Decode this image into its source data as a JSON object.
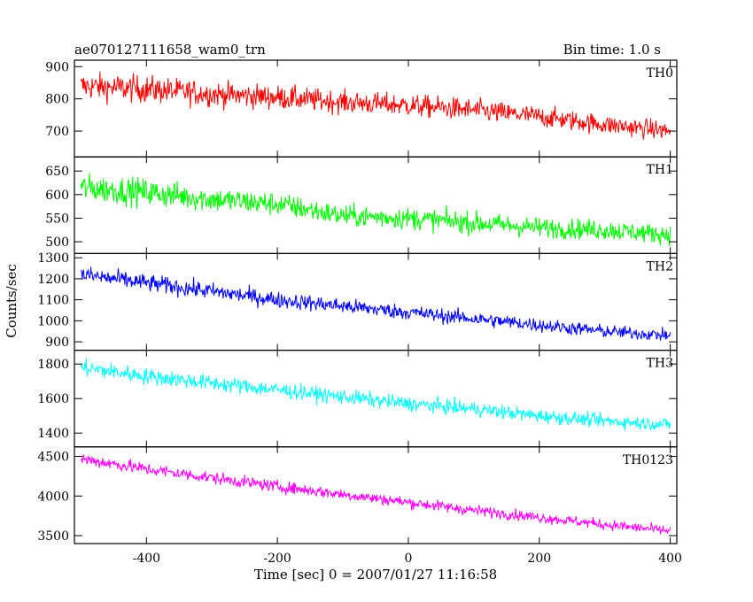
{
  "header": {
    "left_title": "ae070127111658_wam0_trn",
    "right_title": "Bin time: 1.0 s"
  },
  "chart_data": {
    "type": "line",
    "xlabel": "Time [sec] 0 = 2007/01/27 11:16:58",
    "ylabel": "Counts/sec",
    "xlim": [
      -510,
      410
    ],
    "xticks": [
      -400,
      -200,
      0,
      200,
      400
    ],
    "bin_time_s": 1.0,
    "series": [
      {
        "name": "TH0",
        "color": "#ff0000",
        "ylim": [
          620,
          920
        ],
        "yticks": [
          700,
          800,
          900
        ],
        "x": [
          -500,
          -400,
          -300,
          -200,
          -100,
          0,
          100,
          200,
          300,
          400
        ],
        "mean": [
          840,
          830,
          815,
          805,
          790,
          780,
          765,
          745,
          720,
          700
        ],
        "spread": [
          55,
          55,
          50,
          48,
          45,
          45,
          45,
          42,
          40,
          38
        ]
      },
      {
        "name": "TH1",
        "color": "#00ff00",
        "ylim": [
          475,
          680
        ],
        "yticks": [
          500,
          550,
          600,
          650
        ],
        "x": [
          -500,
          -400,
          -300,
          -200,
          -100,
          0,
          100,
          200,
          300,
          400
        ],
        "mean": [
          615,
          605,
          590,
          580,
          555,
          550,
          540,
          530,
          525,
          515
        ],
        "spread": [
          38,
          38,
          35,
          33,
          30,
          30,
          30,
          28,
          28,
          26
        ]
      },
      {
        "name": "TH2",
        "color": "#0000ff",
        "ylim": [
          860,
          1320
        ],
        "yticks": [
          900,
          1000,
          1100,
          1200,
          1300
        ],
        "x": [
          -500,
          -400,
          -300,
          -200,
          -100,
          0,
          100,
          200,
          300,
          400
        ],
        "mean": [
          1220,
          1180,
          1140,
          1100,
          1070,
          1040,
          1010,
          980,
          950,
          930
        ],
        "spread": [
          55,
          55,
          52,
          50,
          48,
          46,
          45,
          43,
          40,
          38
        ]
      },
      {
        "name": "TH3",
        "color": "#00ffff",
        "ylim": [
          1320,
          1880
        ],
        "yticks": [
          1400,
          1600,
          1800
        ],
        "x": [
          -500,
          -400,
          -300,
          -200,
          -100,
          0,
          100,
          200,
          300,
          400
        ],
        "mean": [
          1780,
          1730,
          1690,
          1650,
          1610,
          1570,
          1540,
          1500,
          1470,
          1450
        ],
        "spread": [
          65,
          62,
          60,
          58,
          56,
          55,
          55,
          52,
          50,
          48
        ]
      },
      {
        "name": "TH0123",
        "color": "#ff00ff",
        "ylim": [
          3400,
          4620
        ],
        "yticks": [
          3500,
          4000,
          4500
        ],
        "x": [
          -500,
          -400,
          -300,
          -200,
          -100,
          0,
          100,
          200,
          300,
          400
        ],
        "mean": [
          4470,
          4340,
          4230,
          4120,
          4020,
          3920,
          3820,
          3730,
          3640,
          3560
        ],
        "spread": [
          110,
          105,
          100,
          98,
          95,
          92,
          90,
          88,
          85,
          82
        ]
      }
    ]
  }
}
